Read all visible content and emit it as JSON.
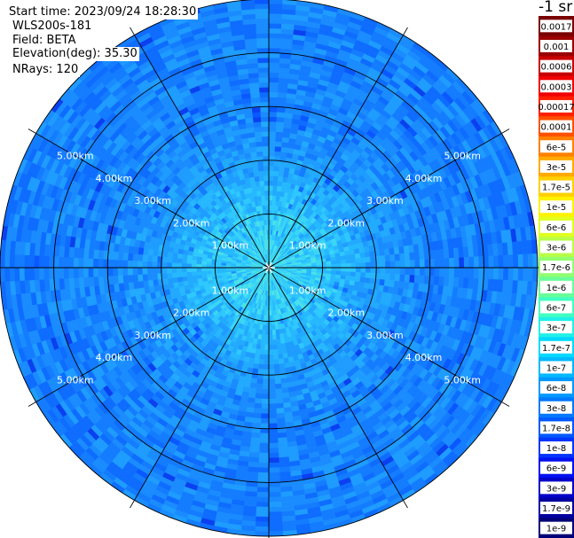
{
  "info": {
    "start_time": "Start time: 2023/09/24 18:28:30",
    "instrument": "WLS200s-181",
    "field": "Field: BETA",
    "elevation": "Elevation(deg): 35.30",
    "nrays": "NRays: 120"
  },
  "colorbar": {
    "unit": "-1 sr",
    "labels": [
      "0.0017",
      "0.001",
      "0.0006",
      "0.0003",
      "0.00017",
      "0.0001",
      "6e-5",
      "3e-5",
      "1.7e-5",
      "1e-5",
      "6e-6",
      "3e-6",
      "1.7e-6",
      "1e-6",
      "6e-7",
      "3e-7",
      "1.7e-7",
      "1e-7",
      "6e-8",
      "3e-8",
      "1.7e-8",
      "1e-8",
      "6e-9",
      "3e-9",
      "1.7e-9",
      "1e-9"
    ],
    "colors": [
      "#7a0000",
      "#9a0000",
      "#c80000",
      "#f00000",
      "#ff2000",
      "#ff5000",
      "#ff8000",
      "#ffaa00",
      "#ffd000",
      "#fff200",
      "#e0ff20",
      "#b8ff48",
      "#90ff70",
      "#68ff98",
      "#40ffc0",
      "#20f0e8",
      "#00d8ff",
      "#00b8ff",
      "#0098ff",
      "#0078ff",
      "#0058ff",
      "#0034ff",
      "#0010f0",
      "#0000c8",
      "#0000a0",
      "#000078"
    ]
  },
  "chart_data": {
    "type": "polar-ppi",
    "rings_km": [
      1,
      2,
      3,
      4,
      5
    ],
    "ring_labels": [
      "1.00km",
      "2.00km",
      "3.00km",
      "4.00km",
      "5.00km"
    ],
    "max_range_km": 5.0,
    "spokes_deg": [
      0,
      30,
      60,
      90,
      120,
      150,
      180,
      210,
      240,
      270,
      300,
      330
    ],
    "nrays": 120,
    "field": "BETA"
  }
}
